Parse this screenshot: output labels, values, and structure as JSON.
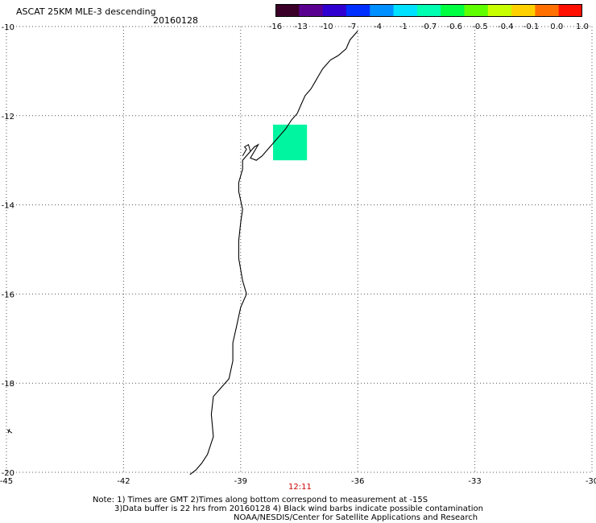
{
  "header": {
    "title": "ASCAT 25KM MLE-3 descending",
    "date": "20160128"
  },
  "colorbar": {
    "ticks": [
      "-16",
      "-13",
      "-10",
      "-7",
      "-4",
      "-1",
      "-0.7",
      "-0.6",
      "-0.5",
      "-0.4",
      "-0.1",
      "0.0",
      "1.0"
    ],
    "colors": [
      "#3a0028",
      "#5a0090",
      "#3000d0",
      "#0030ff",
      "#0090ff",
      "#00e0ff",
      "#00ffb0",
      "#00ff40",
      "#60ff00",
      "#c8ff00",
      "#ffd000",
      "#ff7000",
      "#ff1000"
    ]
  },
  "map": {
    "lon_ticks": [
      -45,
      -42,
      -39,
      -36,
      -33,
      -30
    ],
    "lat_ticks": [
      -10,
      -12,
      -14,
      -16,
      -18,
      -20
    ],
    "lon_range": [
      -45,
      -30
    ],
    "lat_range": [
      -20,
      -10
    ],
    "gridlines": true,
    "swath_color": "#00f5a0"
  },
  "time_label": "12:11",
  "notes": {
    "line1": "Note: 1) Times are GMT 2)Times along bottom correspond to measurement at -15S",
    "line2": "3)Data buffer is 22 hrs from 20160128 4) Black wind barbs indicate possible contamination",
    "line3": "NOAA/NESDIS/Center for Satellite Applications and Research"
  }
}
